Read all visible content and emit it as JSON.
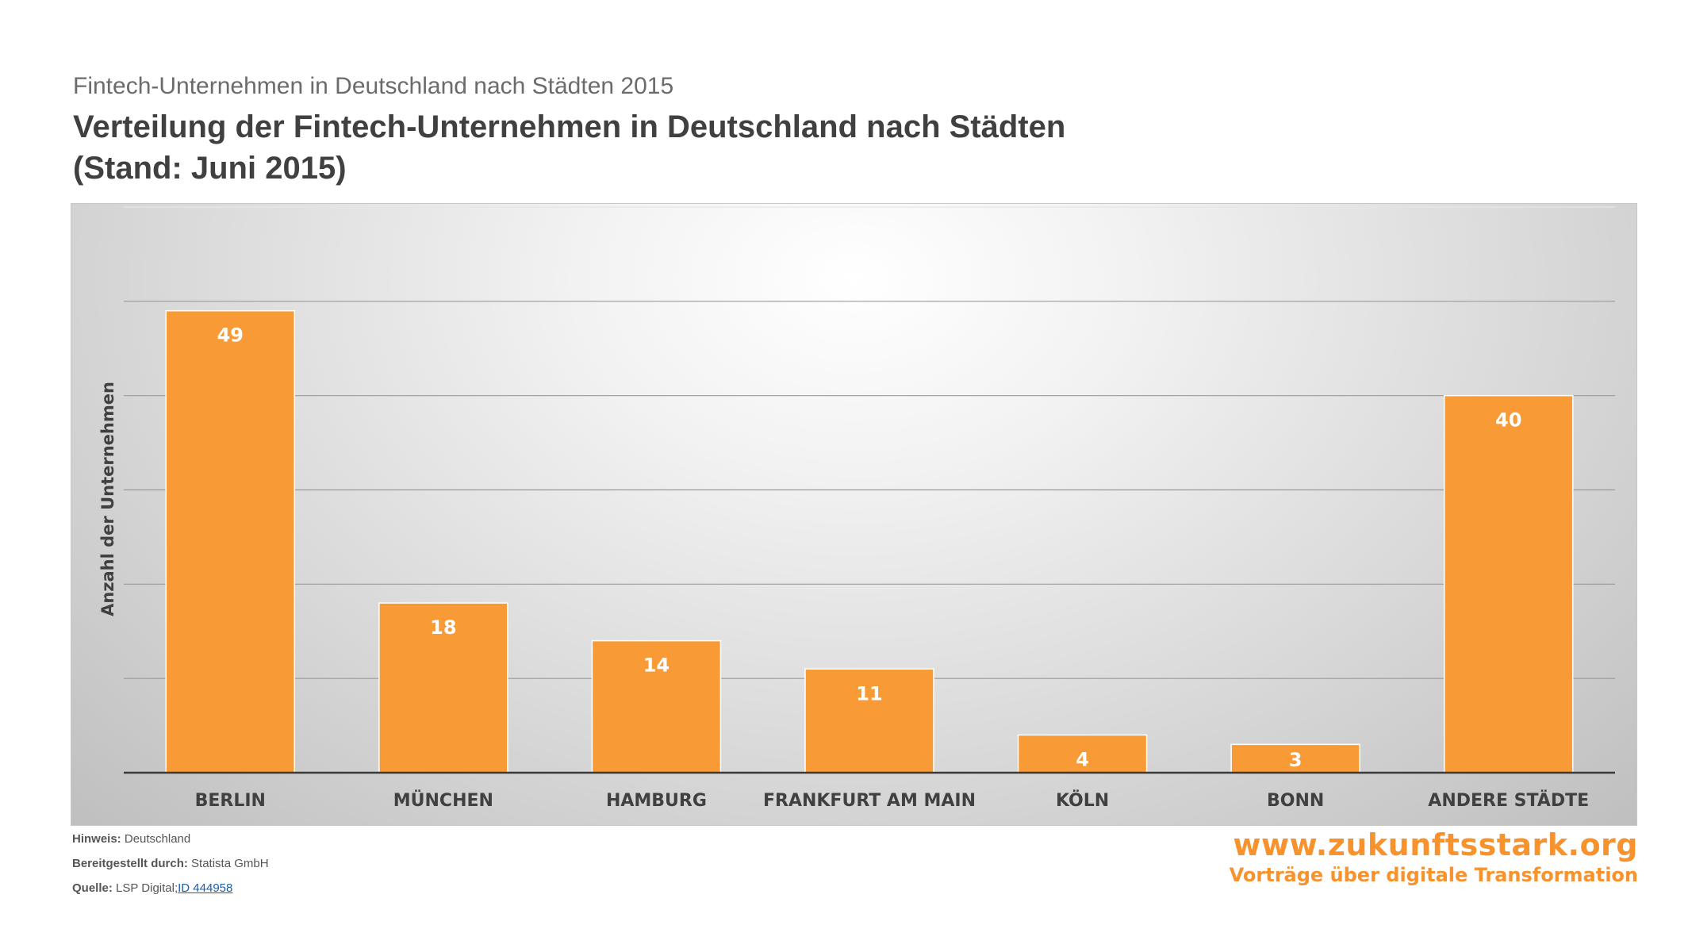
{
  "header": {
    "supertitle": "Fintech-Unternehmen in Deutschland nach Städten 2015",
    "title_line1": "Verteilung der Fintech-Unternehmen in Deutschland nach Städten",
    "title_line2": "(Stand: Juni 2015)"
  },
  "chart_data": {
    "type": "bar",
    "title": "Verteilung der Fintech-Unternehmen in Deutschland nach Städten (Stand: Juni 2015)",
    "xlabel": "",
    "ylabel": "Anzahl der Unternehmen",
    "categories": [
      "BERLIN",
      "MÜNCHEN",
      "HAMBURG",
      "FRANKFURT AM MAIN",
      "KÖLN",
      "BONN",
      "ANDERE STÄDTE"
    ],
    "values": [
      49,
      18,
      14,
      11,
      4,
      3,
      40
    ],
    "ylim": [
      0,
      60
    ],
    "grid": true,
    "data_labels": true,
    "bar_color": "#f89a35",
    "label_color": "#ffffff"
  },
  "footer": {
    "note_label": "Hinweis:",
    "note_value": "Deutschland",
    "provided_label": "Bereitgestellt durch:",
    "provided_value": "Statista GmbH",
    "source_label": "Quelle:",
    "source_value": "LSP Digital;",
    "source_link": "ID 444958"
  },
  "brand": {
    "url": "www.zukunftsstark.org",
    "tagline": "Vorträge über digitale Transformation",
    "color": "#f7922c"
  }
}
